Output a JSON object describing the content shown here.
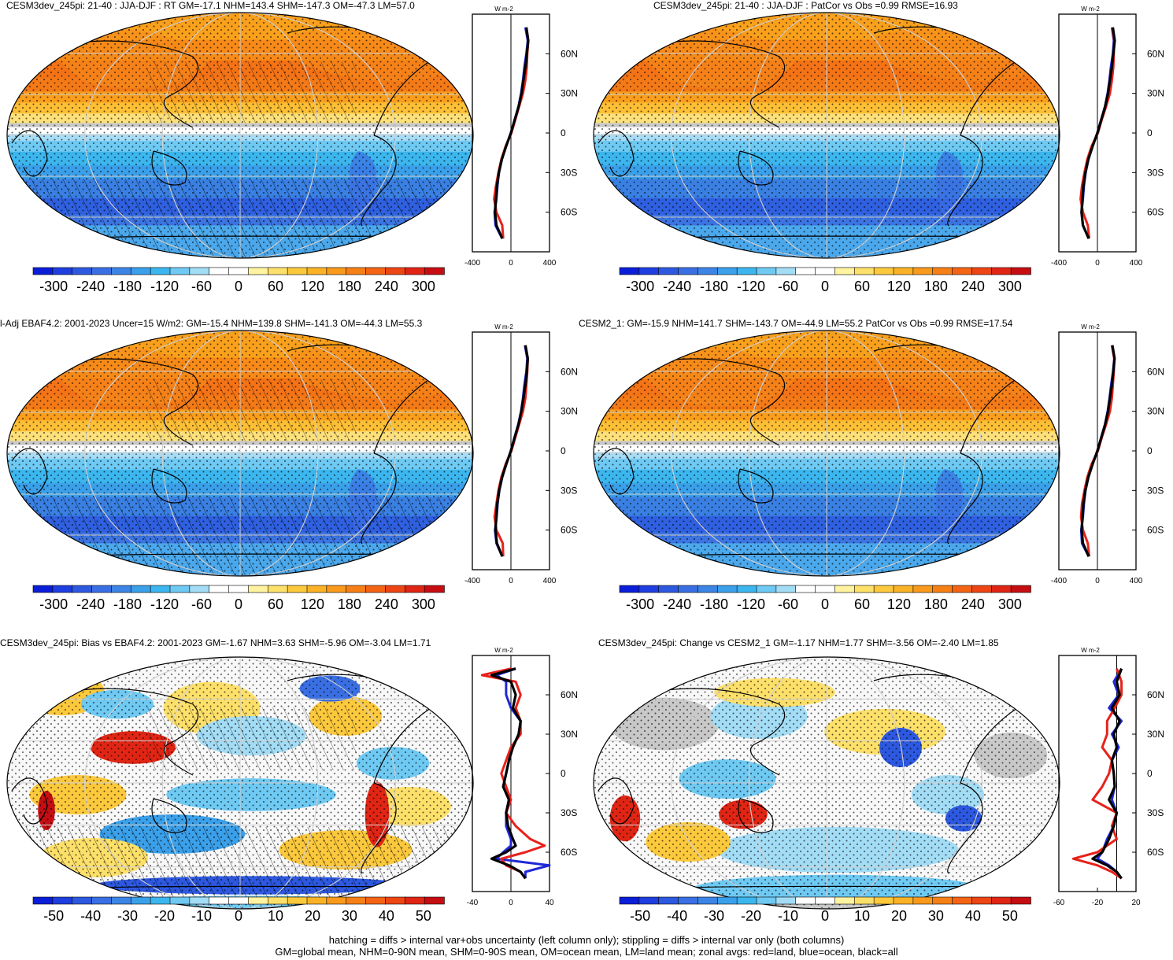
{
  "panels": [
    {
      "id": "p1",
      "title": "CESM3dev_245pi: 21-40 : JJA-DJF : RT GM=-17.1 NHM=143.4 SHM=-147.3 OM=-47.3 LM=57.0",
      "kind": "abs",
      "hatch": true
    },
    {
      "id": "p2",
      "title": "CESM3dev_245pi: 21-40 : JJA-DJF : PatCor vs Obs =0.99 RMSE=16.93",
      "kind": "abs",
      "hatch": false
    },
    {
      "id": "p3",
      "title": "l-Adj EBAF4.2: 2001-2023 Uncer=15 W/m2: GM=-15.4 NHM=139.8 SHM=-141.3 OM=-44.3 LM=55.3",
      "kind": "abs",
      "hatch": true
    },
    {
      "id": "p4",
      "title": "CESM2_1: GM=-15.9 NHM=141.7 SHM=-143.7 OM=-44.9 LM=55.2 PatCor vs Obs =0.99 RMSE=17.54",
      "kind": "abs",
      "hatch": false
    },
    {
      "id": "p5",
      "title": "CESM3dev_245pi: Bias vs EBAF4.2: 2001-2023 GM=-1.67 NHM=3.63 SHM=-5.96 OM=-3.04 LM=1.71",
      "kind": "diff",
      "hatch": true
    },
    {
      "id": "p6",
      "title": "CESM3dev_245pi: Change vs CESM2_1 GM=-1.17 NHM=1.77 SHM=-3.56 OM=-2.40 LM=1.85",
      "kind": "diff",
      "hatch": false
    }
  ],
  "zonal_units": "W m-2",
  "lat_ticks": [
    "60N",
    "30N",
    "0",
    "30S",
    "60S"
  ],
  "colorbars": {
    "abs": {
      "labels": [
        "-300",
        "-240",
        "-180",
        "-120",
        "-60",
        "0",
        "60",
        "120",
        "180",
        "240",
        "300"
      ]
    },
    "diff": {
      "labels": [
        "-50",
        "-40",
        "-30",
        "-20",
        "-10",
        "0",
        "10",
        "20",
        "30",
        "40",
        "50"
      ]
    }
  },
  "zonal_x_ticks": {
    "p1": [
      "-400",
      "0",
      "400"
    ],
    "p2": [
      "-400",
      "0",
      "400"
    ],
    "p3": [
      "-400",
      "0",
      "400"
    ],
    "p4": [
      "-400",
      "0",
      "400"
    ],
    "p5": [
      "-40",
      "0",
      "40"
    ],
    "p6": [
      "-60",
      "-20",
      "20"
    ]
  },
  "colors": {
    "land": "#e8211b",
    "ocean": "#1f27d6",
    "all": "#000000",
    "missing": "#c8c8c8"
  },
  "caption": {
    "line1": "hatching = diffs > internal var+obs uncertainty (left column only); stippling = diffs > internal var only (both columns)",
    "line2": "GM=global mean, NHM=0-90N mean, SHM=0-90S mean, OM=ocean mean, LM=land mean; zonal avgs: red=land, blue=ocean, black=all"
  },
  "chart_data": [
    {
      "type": "heatmap",
      "title": "CESM3dev_245pi: 21-40 : JJA-DJF : RT GM=-17.1 NHM=143.4 SHM=-147.3 OM=-47.3 LM=57.0",
      "colorbar_range": [
        -300,
        300
      ],
      "zonal_mean": {
        "xlim": [
          -400,
          400
        ],
        "lat": [
          80,
          70,
          60,
          50,
          40,
          30,
          20,
          10,
          0,
          -10,
          -20,
          -30,
          -40,
          -50,
          -60,
          -70,
          -80
        ],
        "all": [
          160,
          180,
          165,
          150,
          130,
          110,
          80,
          40,
          0,
          -50,
          -95,
          -125,
          -145,
          -155,
          -165,
          -150,
          -90
        ],
        "land": [
          160,
          180,
          170,
          165,
          150,
          125,
          85,
          45,
          5,
          -55,
          -100,
          -130,
          -155,
          -175,
          -150,
          -90,
          -80
        ],
        "ocean": [
          150,
          175,
          160,
          140,
          125,
          105,
          78,
          38,
          -2,
          -50,
          -94,
          -124,
          -140,
          -150,
          -170,
          -160,
          -90
        ]
      }
    },
    {
      "type": "heatmap",
      "title": "CESM3dev_245pi: 21-40 : JJA-DJF : PatCor vs Obs =0.99 RMSE=16.93",
      "colorbar_range": [
        -300,
        300
      ],
      "zonal_mean": {
        "xlim": [
          -400,
          400
        ],
        "lat": [
          80,
          70,
          60,
          50,
          40,
          30,
          20,
          10,
          0,
          -10,
          -20,
          -30,
          -40,
          -50,
          -60,
          -70,
          -80
        ],
        "all": [
          160,
          180,
          165,
          150,
          130,
          110,
          80,
          40,
          0,
          -50,
          -95,
          -125,
          -145,
          -155,
          -165,
          -150,
          -90
        ],
        "land": [
          155,
          175,
          170,
          165,
          150,
          130,
          90,
          45,
          5,
          -60,
          -105,
          -135,
          -160,
          -175,
          -150,
          -100,
          -85
        ],
        "ocean": [
          150,
          170,
          160,
          140,
          125,
          105,
          78,
          38,
          -2,
          -50,
          -94,
          -122,
          -140,
          -150,
          -165,
          -150,
          -90
        ]
      }
    },
    {
      "type": "heatmap",
      "title": "l-Adj EBAF4.2: 2001-2023 Uncer=15 W/m2: GM=-15.4 NHM=139.8 SHM=-141.3 OM=-44.3 LM=55.3",
      "colorbar_range": [
        -300,
        300
      ],
      "zonal_mean": {
        "xlim": [
          -400,
          400
        ],
        "lat": [
          80,
          70,
          60,
          50,
          40,
          30,
          20,
          10,
          0,
          -10,
          -20,
          -30,
          -40,
          -50,
          -60,
          -70,
          -80
        ],
        "all": [
          150,
          175,
          165,
          150,
          130,
          108,
          78,
          38,
          0,
          -48,
          -92,
          -122,
          -142,
          -152,
          -160,
          -145,
          -90
        ],
        "land": [
          150,
          175,
          170,
          160,
          150,
          125,
          85,
          45,
          5,
          -55,
          -100,
          -130,
          -150,
          -170,
          -150,
          -85,
          -80
        ],
        "ocean": [
          145,
          170,
          160,
          140,
          125,
          105,
          76,
          36,
          -2,
          -48,
          -90,
          -120,
          -138,
          -148,
          -165,
          -150,
          -90
        ]
      }
    },
    {
      "type": "heatmap",
      "title": "CESM2_1: GM=-15.9 NHM=141.7 SHM=-143.7 OM=-44.9 LM=55.2 PatCor vs Obs =0.99 RMSE=17.54",
      "colorbar_range": [
        -300,
        300
      ],
      "zonal_mean": {
        "xlim": [
          -400,
          400
        ],
        "lat": [
          80,
          70,
          60,
          50,
          40,
          30,
          20,
          10,
          0,
          -10,
          -20,
          -30,
          -40,
          -50,
          -60,
          -70,
          -80
        ],
        "all": [
          155,
          178,
          165,
          150,
          130,
          110,
          80,
          40,
          0,
          -50,
          -95,
          -125,
          -145,
          -155,
          -163,
          -150,
          -90
        ],
        "land": [
          150,
          175,
          170,
          160,
          150,
          130,
          90,
          45,
          5,
          -60,
          -105,
          -135,
          -160,
          -170,
          -150,
          -100,
          -85
        ],
        "ocean": [
          150,
          175,
          162,
          142,
          126,
          106,
          78,
          38,
          -2,
          -50,
          -94,
          -124,
          -140,
          -150,
          -168,
          -160,
          -90
        ]
      }
    },
    {
      "type": "heatmap",
      "title": "CESM3dev_245pi: Bias vs EBAF4.2: 2001-2023 GM=-1.67 NHM=3.63 SHM=-5.96 OM=-3.04 LM=1.71",
      "colorbar_range": [
        -50,
        50
      ],
      "zonal_mean": {
        "xlim": [
          -40,
          40
        ],
        "lat": [
          80,
          75,
          70,
          60,
          50,
          40,
          30,
          20,
          10,
          0,
          -10,
          -20,
          -30,
          -40,
          -50,
          -55,
          -60,
          -65,
          -70,
          -75,
          -80
        ],
        "all": [
          5,
          -20,
          0,
          5,
          2,
          10,
          8,
          2,
          -2,
          -5,
          -8,
          -2,
          -5,
          -3,
          2,
          5,
          -5,
          -20,
          -2,
          10,
          15
        ],
        "land": [
          0,
          -30,
          5,
          10,
          5,
          10,
          10,
          0,
          -5,
          -10,
          -5,
          0,
          -5,
          5,
          20,
          35,
          15,
          -10,
          -5,
          10,
          15
        ],
        "ocean": [
          5,
          -15,
          -5,
          -5,
          0,
          10,
          8,
          2,
          -2,
          -5,
          -8,
          -2,
          -5,
          -5,
          0,
          0,
          -8,
          -15,
          40,
          15,
          15
        ]
      }
    },
    {
      "type": "heatmap",
      "title": "CESM3dev_245pi: Change vs CESM2_1 GM=-1.17 NHM=1.77 SHM=-3.56 OM=-2.40 LM=1.85",
      "colorbar_range": [
        -50,
        50
      ],
      "zonal_mean": {
        "xlim": [
          -60,
          20
        ],
        "lat": [
          80,
          70,
          60,
          50,
          40,
          30,
          20,
          10,
          0,
          -10,
          -20,
          -30,
          -40,
          -50,
          -60,
          -65,
          -70,
          -75,
          -80
        ],
        "all": [
          5,
          0,
          3,
          -5,
          3,
          -3,
          0,
          -5,
          -3,
          -2,
          -8,
          0,
          -3,
          -8,
          -15,
          -25,
          -10,
          0,
          5
        ],
        "land": [
          0,
          5,
          5,
          -2,
          -10,
          -10,
          -15,
          -5,
          -8,
          -15,
          -25,
          0,
          -5,
          0,
          -20,
          -45,
          -20,
          -5,
          5
        ],
        "ocean": [
          5,
          -3,
          2,
          -8,
          5,
          -5,
          2,
          -5,
          -3,
          -2,
          -5,
          0,
          -3,
          -10,
          -15,
          -20,
          -8,
          0,
          5
        ]
      }
    }
  ]
}
